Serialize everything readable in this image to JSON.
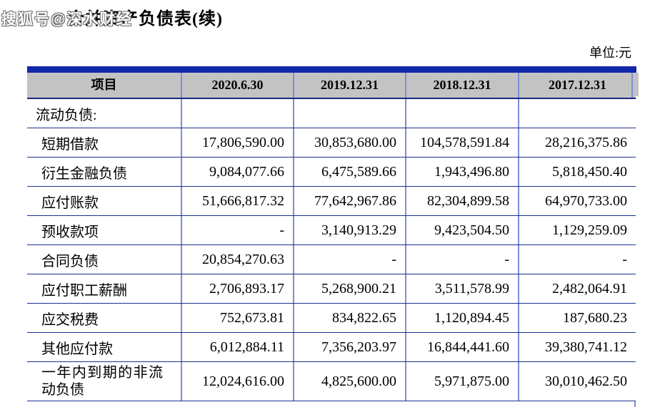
{
  "watermark": "搜狐号@深水财经",
  "title": "合并资产负债表(续)",
  "unit_label": "单位:元",
  "colors": {
    "top_bar": "#1128a8",
    "row_line": "#1b2f8f",
    "column_line": "#7b8fd4",
    "header_bg": "#c3c3c3"
  },
  "table": {
    "columns": [
      "项目",
      "2020.6.30",
      "2019.12.31",
      "2018.12.31",
      "2017.12.31"
    ],
    "rows": [
      {
        "label": "流动负债:",
        "values": [
          "",
          "",
          "",
          ""
        ]
      },
      {
        "label": "短期借款",
        "values": [
          "17,806,590.00",
          "30,853,680.00",
          "104,578,591.84",
          "28,216,375.86"
        ]
      },
      {
        "label": "衍生金融负债",
        "values": [
          "9,084,077.66",
          "6,475,589.66",
          "1,943,496.80",
          "5,818,450.40"
        ]
      },
      {
        "label": "应付账款",
        "values": [
          "51,666,817.32",
          "77,642,967.86",
          "82,304,899.58",
          "64,970,733.00"
        ]
      },
      {
        "label": "预收款项",
        "values": [
          "-",
          "3,140,913.29",
          "9,423,504.50",
          "1,129,259.09"
        ]
      },
      {
        "label": "合同负债",
        "values": [
          "20,854,270.63",
          "-",
          "-",
          "-"
        ]
      },
      {
        "label": "应付职工薪酬",
        "values": [
          "2,706,893.17",
          "5,268,900.21",
          "3,511,578.99",
          "2,482,064.91"
        ]
      },
      {
        "label": "应交税费",
        "values": [
          "752,673.81",
          "834,822.65",
          "1,120,894.45",
          "187,680.23"
        ]
      },
      {
        "label": "其他应付款",
        "values": [
          "6,012,884.11",
          "7,356,203.97",
          "16,844,441.60",
          "39,380,741.12"
        ]
      },
      {
        "label": "一年内到期的非流动负债",
        "values": [
          "12,024,616.00",
          "4,825,600.00",
          "5,971,875.00",
          "30,010,462.50"
        ]
      }
    ]
  }
}
